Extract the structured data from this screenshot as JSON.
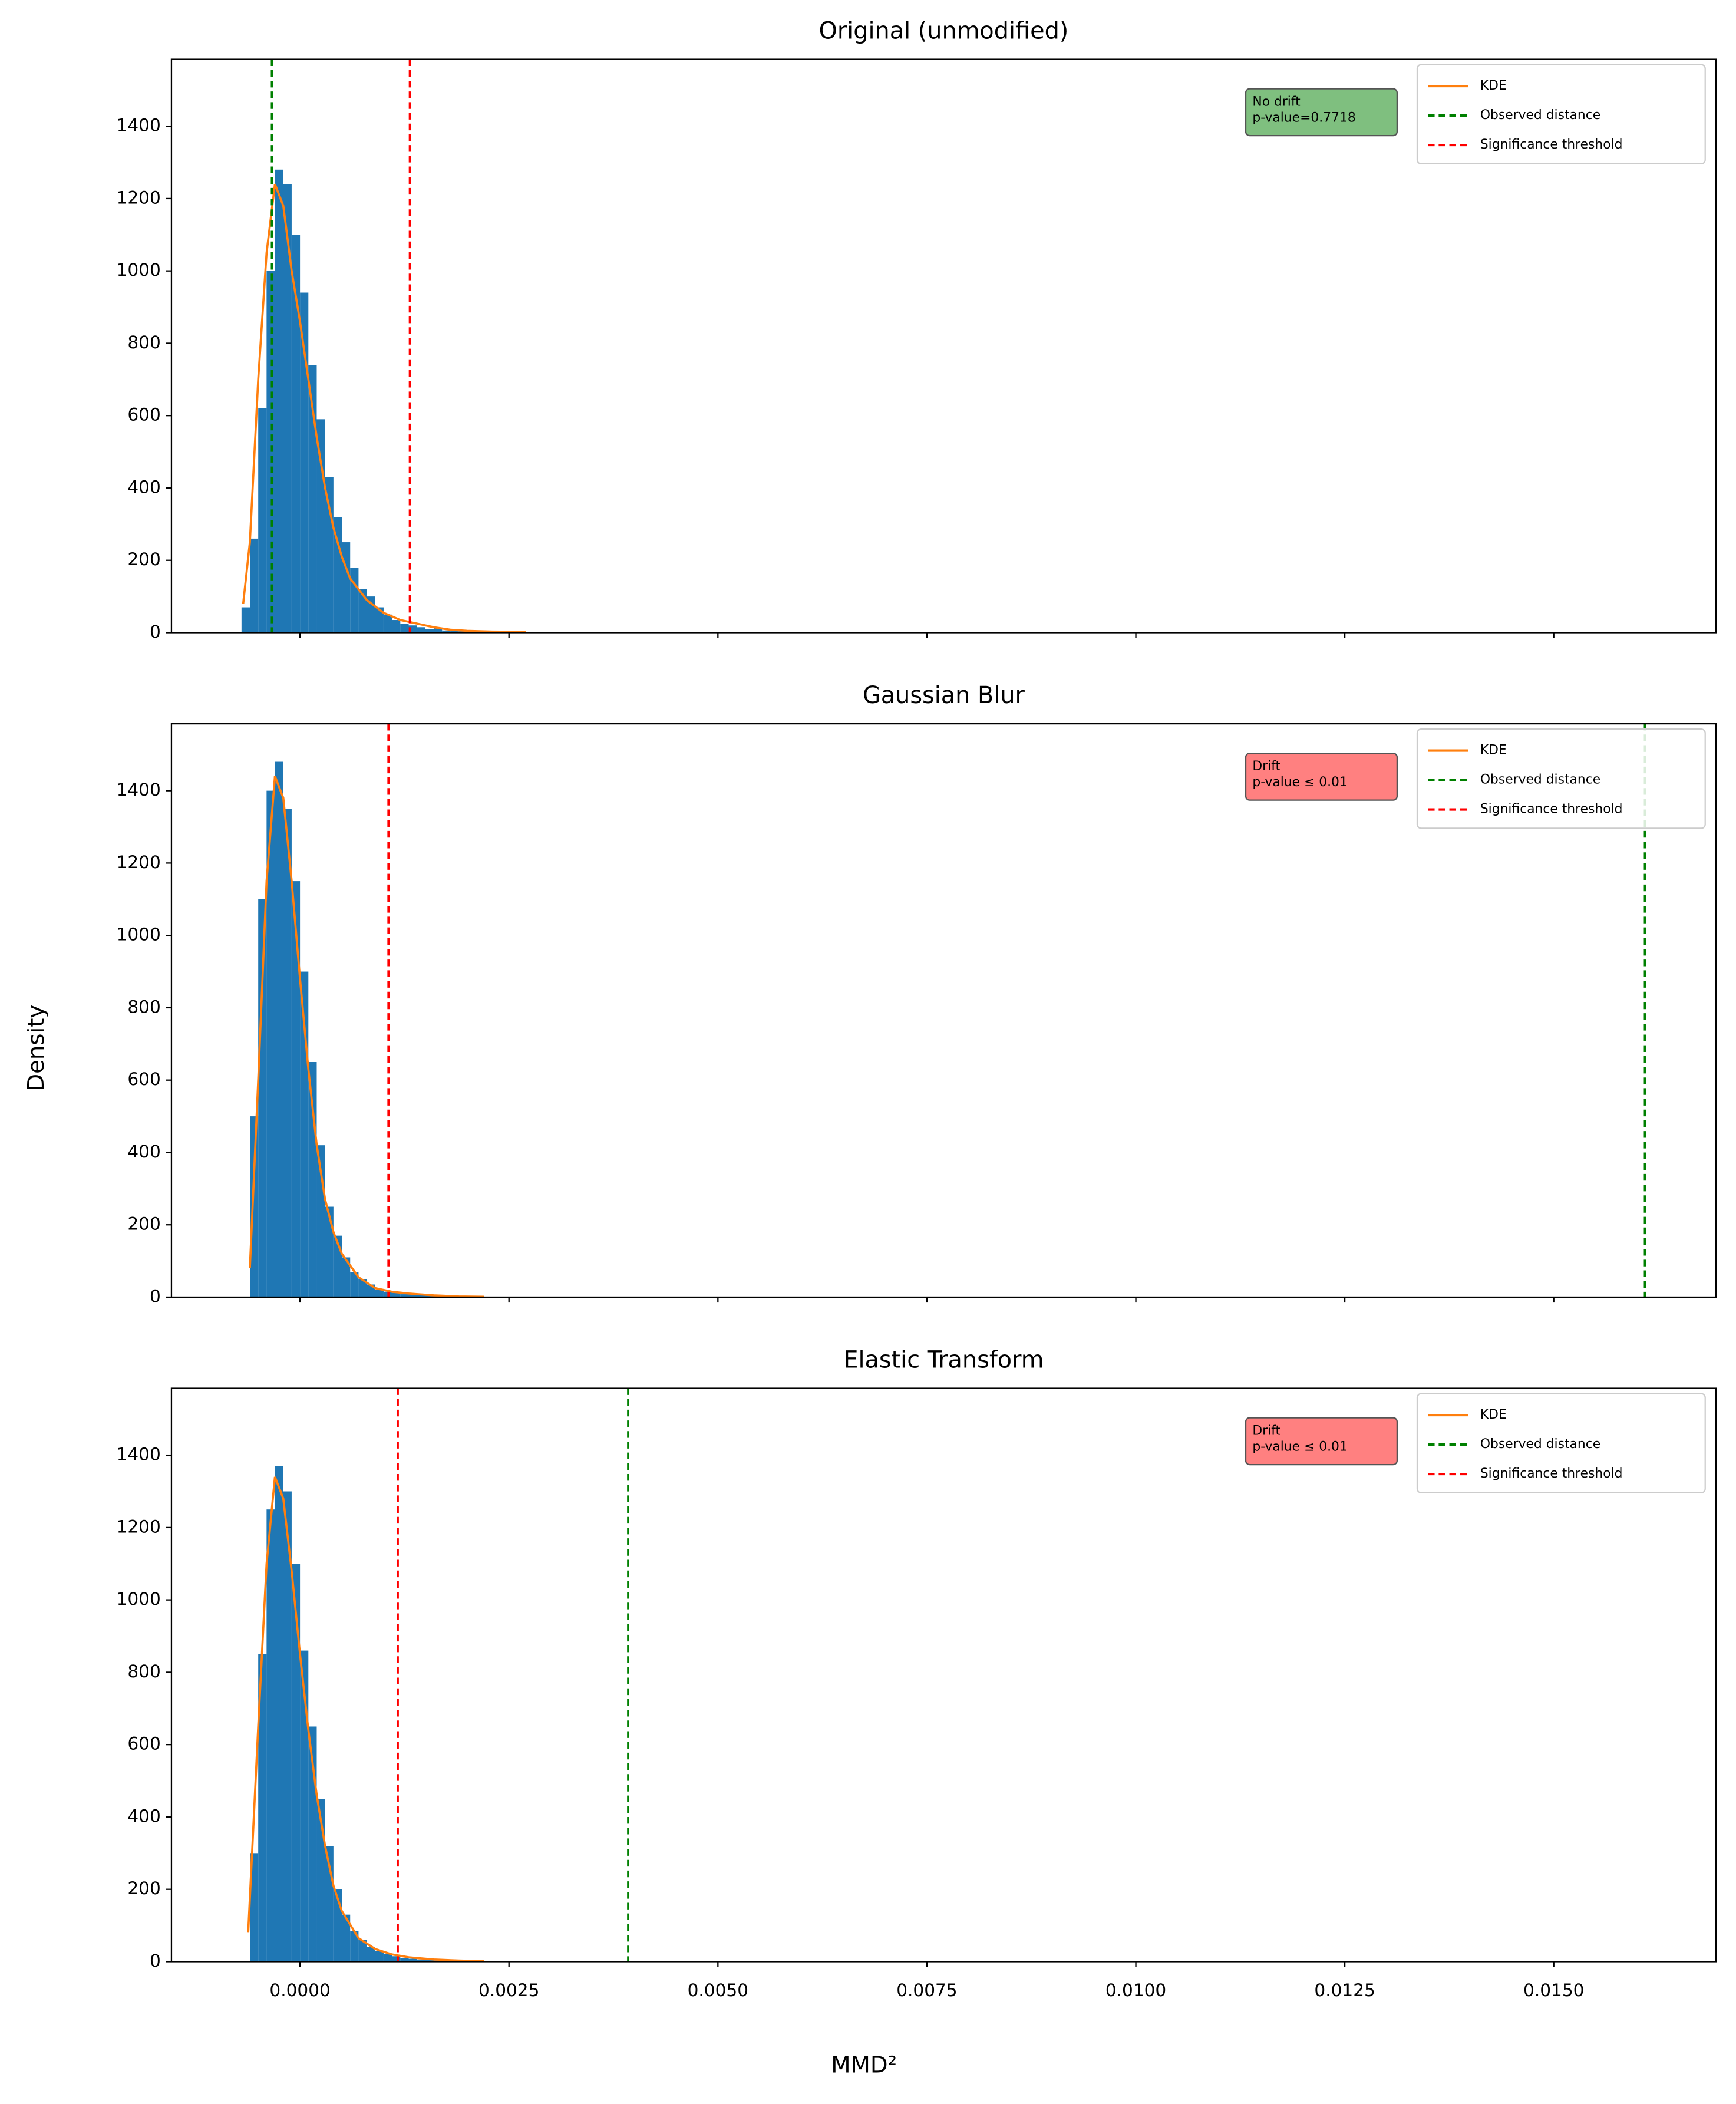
{
  "figure": {
    "xlabel": "MMD²",
    "ylabel": "Density"
  },
  "chart_data": [
    {
      "type": "histogram",
      "title": "Original (unmodified)",
      "bins": [
        -0.0007,
        -0.0006,
        -0.0005,
        -0.0004,
        -0.0003,
        -0.0002,
        -0.0001,
        0,
        0.0001,
        0.0002,
        0.0003,
        0.0004,
        0.0005,
        0.0006,
        0.0007,
        0.0008,
        0.0009,
        0.001,
        0.0011,
        0.0012,
        0.0013,
        0.0014,
        0.0015,
        0.0016,
        0.0017,
        0.0018,
        0.0019,
        0.002,
        0.0021,
        0.0022,
        0.0023,
        0.0024,
        0.0025,
        0.0026,
        0.0027
      ],
      "counts": [
        70,
        260,
        620,
        1000,
        1280,
        1240,
        1100,
        940,
        740,
        590,
        430,
        320,
        250,
        180,
        120,
        100,
        70,
        50,
        35,
        25,
        20,
        15,
        10,
        12,
        6,
        5,
        4,
        3,
        3,
        2,
        2,
        1,
        1,
        1
      ],
      "color": "#1f77b4",
      "kde": {
        "name": "KDE",
        "color": "#ff7f0e",
        "x": [
          -0.00068,
          -0.0006,
          -0.0005,
          -0.0004,
          -0.0003,
          -0.0002,
          -0.0001,
          0,
          0.0001,
          0.0002,
          0.0003,
          0.0004,
          0.0005,
          0.0006,
          0.0008,
          0.001,
          0.0012,
          0.0014,
          0.0016,
          0.0018,
          0.002,
          0.0023,
          0.0027
        ],
        "values": [
          80,
          250,
          700,
          1050,
          1240,
          1180,
          1000,
          860,
          700,
          540,
          400,
          290,
          210,
          150,
          90,
          55,
          35,
          25,
          15,
          8,
          5,
          3,
          2
        ]
      },
      "lines": [
        {
          "name": "Observed distance",
          "color": "green",
          "x": -0.000337
        },
        {
          "name": "Significance threshold",
          "color": "red",
          "x": 0.001314
        }
      ],
      "annotation": [
        "No drift",
        "p-value=0.7718"
      ],
      "annotation_color": "#7fbf7f",
      "xlim": [
        -0.001538,
        0.01694
      ],
      "xticks": [
        0,
        0.0025,
        0.005,
        0.0075,
        0.01,
        0.0125,
        0.015
      ],
      "ylim": [
        0,
        1585
      ],
      "yticks": [
        0,
        200,
        400,
        600,
        800,
        1000,
        1200,
        1400
      ]
    },
    {
      "type": "histogram",
      "title": "Gaussian Blur",
      "bins": [
        -0.0006,
        -0.0005,
        -0.0004,
        -0.0003,
        -0.0002,
        -0.0001,
        0,
        0.0001,
        0.0002,
        0.0003,
        0.0004,
        0.0005,
        0.0006,
        0.0007,
        0.0008,
        0.0009,
        0.001,
        0.0011,
        0.0012,
        0.0013,
        0.0014,
        0.0015,
        0.0016,
        0.0017,
        0.0018,
        0.0019,
        0.002,
        0.0021,
        0.0022,
        0.0023
      ],
      "counts": [
        500,
        1100,
        1400,
        1480,
        1350,
        1150,
        900,
        650,
        420,
        250,
        170,
        110,
        70,
        50,
        35,
        20,
        15,
        12,
        8,
        10,
        6,
        4,
        3,
        2,
        2,
        1,
        1,
        1,
        1
      ],
      "color": "#1f77b4",
      "kde": {
        "name": "KDE",
        "color": "#ff7f0e",
        "x": [
          -0.0006,
          -0.0005,
          -0.0004,
          -0.0003,
          -0.0002,
          -0.0001,
          0,
          0.0001,
          0.0002,
          0.0003,
          0.0004,
          0.0005,
          0.0007,
          0.0009,
          0.0011,
          0.0013,
          0.0016,
          0.0019,
          0.0022
        ],
        "values": [
          80,
          600,
          1150,
          1440,
          1380,
          1150,
          880,
          630,
          420,
          270,
          180,
          120,
          55,
          25,
          15,
          10,
          5,
          2,
          1
        ]
      },
      "lines": [
        {
          "name": "Observed distance",
          "color": "green",
          "x": 0.01609
        },
        {
          "name": "Significance threshold",
          "color": "red",
          "x": 0.001058
        }
      ],
      "annotation": [
        "Drift",
        "p-value ≤ 0.01"
      ],
      "annotation_color": "#ff8080",
      "xlim": [
        -0.001538,
        0.01694
      ],
      "xticks": [
        0,
        0.0025,
        0.005,
        0.0075,
        0.01,
        0.0125,
        0.015
      ],
      "ylim": [
        0,
        1585
      ],
      "yticks": [
        0,
        200,
        400,
        600,
        800,
        1000,
        1200,
        1400
      ]
    },
    {
      "type": "histogram",
      "title": "Elastic Transform",
      "bins": [
        -0.0006,
        -0.0005,
        -0.0004,
        -0.0003,
        -0.0002,
        -0.0001,
        0,
        0.0001,
        0.0002,
        0.0003,
        0.0004,
        0.0005,
        0.0006,
        0.0007,
        0.0008,
        0.0009,
        0.001,
        0.0011,
        0.0012,
        0.0013,
        0.0014,
        0.0015,
        0.0016,
        0.0017,
        0.0018,
        0.0019,
        0.002,
        0.0021,
        0.0022
      ],
      "counts": [
        300,
        850,
        1250,
        1370,
        1300,
        1100,
        860,
        650,
        450,
        320,
        200,
        130,
        85,
        60,
        40,
        30,
        22,
        15,
        10,
        8,
        6,
        4,
        3,
        2,
        2,
        1,
        1,
        1
      ],
      "color": "#1f77b4",
      "kde": {
        "name": "KDE",
        "color": "#ff7f0e",
        "x": [
          -0.00062,
          -0.0005,
          -0.0004,
          -0.0003,
          -0.0002,
          -0.0001,
          0,
          0.0001,
          0.0002,
          0.0003,
          0.0004,
          0.0005,
          0.0007,
          0.0009,
          0.0011,
          0.0013,
          0.0016,
          0.0019,
          0.0022
        ],
        "values": [
          80,
          650,
          1100,
          1340,
          1280,
          1080,
          850,
          640,
          460,
          320,
          210,
          140,
          65,
          35,
          20,
          12,
          6,
          3,
          1
        ]
      },
      "lines": [
        {
          "name": "Observed distance",
          "color": "green",
          "x": 0.003926
        },
        {
          "name": "Significance threshold",
          "color": "red",
          "x": 0.00117
        }
      ],
      "annotation": [
        "Drift",
        "p-value ≤ 0.01"
      ],
      "annotation_color": "#ff8080",
      "xlim": [
        -0.001538,
        0.01694
      ],
      "xticks": [
        {
          "value": 0,
          "label": "0.0000"
        },
        {
          "value": 0.0025,
          "label": "0.0025"
        },
        {
          "value": 0.005,
          "label": "0.0050"
        },
        {
          "value": 0.0075,
          "label": "0.0075"
        },
        {
          "value": 0.01,
          "label": "0.0100"
        },
        {
          "value": 0.0125,
          "label": "0.0125"
        },
        {
          "value": 0.015,
          "label": "0.0150"
        }
      ],
      "ylim": [
        0,
        1585
      ],
      "yticks": [
        0,
        200,
        400,
        600,
        800,
        1000,
        1200,
        1400
      ]
    }
  ]
}
